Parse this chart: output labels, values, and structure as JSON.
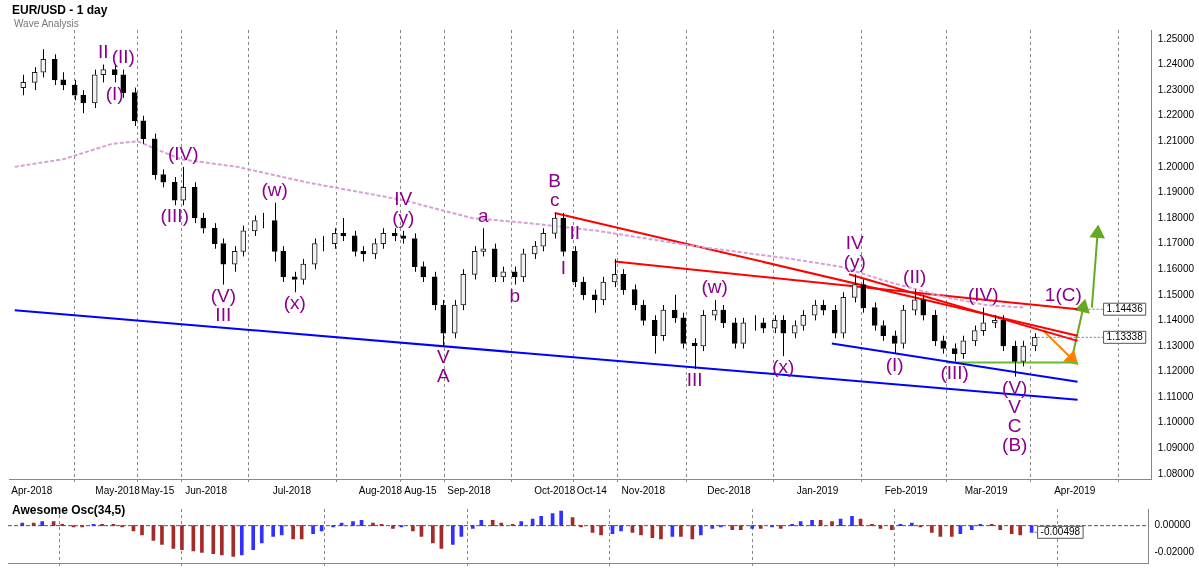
{
  "chart_data": [
    {
      "type": "candlestick",
      "title": "EUR/USD - 1 day",
      "subtitle": "Wave Analysis",
      "x": [
        "2018-03-29",
        "2018-04-02",
        "2018-04-05",
        "2018-04-09",
        "2018-04-12",
        "2018-04-16",
        "2018-04-19",
        "2018-04-23",
        "2018-04-26",
        "2018-04-30",
        "2018-05-03",
        "2018-05-07",
        "2018-05-10",
        "2018-05-14",
        "2018-05-17",
        "2018-05-21",
        "2018-05-24",
        "2018-05-28",
        "2018-05-31",
        "2018-06-04",
        "2018-06-07",
        "2018-06-11",
        "2018-06-14",
        "2018-06-18",
        "2018-06-21",
        "2018-06-25",
        "2018-06-28",
        "2018-07-02",
        "2018-07-05",
        "2018-07-09",
        "2018-07-12",
        "2018-07-16",
        "2018-07-19",
        "2018-07-23",
        "2018-07-26",
        "2018-07-30",
        "2018-08-02",
        "2018-08-06",
        "2018-08-09",
        "2018-08-13",
        "2018-08-16",
        "2018-08-20",
        "2018-08-23",
        "2018-08-27",
        "2018-08-30",
        "2018-09-03",
        "2018-09-06",
        "2018-09-10",
        "2018-09-13",
        "2018-09-17",
        "2018-09-20",
        "2018-09-24",
        "2018-09-27",
        "2018-10-01",
        "2018-10-04",
        "2018-10-08",
        "2018-10-11",
        "2018-10-15",
        "2018-10-18",
        "2018-10-22",
        "2018-10-25",
        "2018-10-29",
        "2018-11-01",
        "2018-11-05",
        "2018-11-08",
        "2018-11-12",
        "2018-11-15",
        "2018-11-19",
        "2018-11-22",
        "2018-11-26",
        "2018-11-29",
        "2018-12-03",
        "2018-12-06",
        "2018-12-10",
        "2018-12-13",
        "2018-12-17",
        "2018-12-20",
        "2018-12-24",
        "2018-12-27",
        "2018-12-31",
        "2019-01-03",
        "2019-01-07",
        "2019-01-10",
        "2019-01-14",
        "2019-01-17",
        "2019-01-21",
        "2019-01-24",
        "2019-01-28",
        "2019-01-31",
        "2019-02-04",
        "2019-02-07",
        "2019-02-11",
        "2019-02-14",
        "2019-02-18",
        "2019-02-21",
        "2019-02-25",
        "2019-02-28",
        "2019-03-04",
        "2019-03-07",
        "2019-03-11",
        "2019-03-14",
        "2019-03-18"
      ],
      "ohlc": [
        [
          1.231,
          1.236,
          1.228,
          1.233
        ],
        [
          1.233,
          1.239,
          1.23,
          1.237
        ],
        [
          1.237,
          1.246,
          1.235,
          1.242
        ],
        [
          1.242,
          1.244,
          1.232,
          1.234
        ],
        [
          1.234,
          1.237,
          1.23,
          1.232
        ],
        [
          1.232,
          1.234,
          1.226,
          1.228
        ],
        [
          1.228,
          1.23,
          1.221,
          1.225
        ],
        [
          1.225,
          1.238,
          1.223,
          1.236
        ],
        [
          1.236,
          1.24,
          1.233,
          1.238
        ],
        [
          1.238,
          1.24,
          1.233,
          1.236
        ],
        [
          1.236,
          1.238,
          1.227,
          1.229
        ],
        [
          1.229,
          1.231,
          1.216,
          1.218
        ],
        [
          1.218,
          1.22,
          1.209,
          1.211
        ],
        [
          1.211,
          1.213,
          1.195,
          1.197
        ],
        [
          1.197,
          1.199,
          1.192,
          1.194
        ],
        [
          1.194,
          1.196,
          1.185,
          1.187
        ],
        [
          1.187,
          1.2,
          1.185,
          1.192
        ],
        [
          1.192,
          1.194,
          1.178,
          1.18
        ],
        [
          1.18,
          1.182,
          1.174,
          1.176
        ],
        [
          1.176,
          1.178,
          1.168,
          1.17
        ],
        [
          1.17,
          1.172,
          1.154,
          1.162
        ],
        [
          1.162,
          1.169,
          1.159,
          1.167
        ],
        [
          1.167,
          1.177,
          1.165,
          1.175
        ],
        [
          1.175,
          1.181,
          1.173,
          1.179
        ],
        [
          1.179,
          1.182,
          1.176,
          1.179
        ],
        [
          1.179,
          1.186,
          1.163,
          1.167
        ],
        [
          1.167,
          1.169,
          1.155,
          1.157
        ],
        [
          1.157,
          1.159,
          1.151,
          1.156
        ],
        [
          1.156,
          1.164,
          1.154,
          1.162
        ],
        [
          1.162,
          1.172,
          1.16,
          1.17
        ],
        [
          1.17,
          1.173,
          1.167,
          1.17
        ],
        [
          1.17,
          1.176,
          1.168,
          1.174
        ],
        [
          1.174,
          1.18,
          1.171,
          1.173
        ],
        [
          1.173,
          1.175,
          1.165,
          1.167
        ],
        [
          1.167,
          1.169,
          1.163,
          1.166
        ],
        [
          1.166,
          1.172,
          1.164,
          1.17
        ],
        [
          1.17,
          1.176,
          1.168,
          1.174
        ],
        [
          1.174,
          1.176,
          1.171,
          1.173
        ],
        [
          1.173,
          1.175,
          1.17,
          1.172
        ],
        [
          1.172,
          1.174,
          1.159,
          1.161
        ],
        [
          1.161,
          1.163,
          1.155,
          1.157
        ],
        [
          1.157,
          1.159,
          1.144,
          1.146
        ],
        [
          1.146,
          1.148,
          1.13,
          1.135
        ],
        [
          1.135,
          1.148,
          1.133,
          1.146
        ],
        [
          1.146,
          1.16,
          1.144,
          1.158
        ],
        [
          1.158,
          1.169,
          1.156,
          1.167
        ],
        [
          1.167,
          1.176,
          1.165,
          1.168
        ],
        [
          1.168,
          1.17,
          1.155,
          1.157
        ],
        [
          1.157,
          1.161,
          1.155,
          1.159
        ],
        [
          1.159,
          1.161,
          1.154,
          1.157
        ],
        [
          1.157,
          1.168,
          1.155,
          1.166
        ],
        [
          1.166,
          1.171,
          1.164,
          1.169
        ],
        [
          1.169,
          1.176,
          1.167,
          1.174
        ],
        [
          1.174,
          1.182,
          1.172,
          1.18
        ],
        [
          1.18,
          1.182,
          1.165,
          1.167
        ],
        [
          1.167,
          1.169,
          1.153,
          1.155
        ],
        [
          1.155,
          1.157,
          1.148,
          1.15
        ],
        [
          1.15,
          1.152,
          1.143,
          1.148
        ],
        [
          1.148,
          1.157,
          1.146,
          1.155
        ],
        [
          1.155,
          1.164,
          1.153,
          1.158
        ],
        [
          1.158,
          1.16,
          1.15,
          1.152
        ],
        [
          1.152,
          1.154,
          1.144,
          1.146
        ],
        [
          1.146,
          1.148,
          1.138,
          1.14
        ],
        [
          1.14,
          1.142,
          1.127,
          1.134
        ],
        [
          1.134,
          1.146,
          1.132,
          1.144
        ],
        [
          1.144,
          1.15,
          1.139,
          1.141
        ],
        [
          1.141,
          1.143,
          1.129,
          1.131
        ],
        [
          1.131,
          1.133,
          1.121,
          1.13
        ],
        [
          1.13,
          1.144,
          1.128,
          1.142
        ],
        [
          1.142,
          1.148,
          1.14,
          1.144
        ],
        [
          1.144,
          1.146,
          1.137,
          1.139
        ],
        [
          1.139,
          1.141,
          1.129,
          1.131
        ],
        [
          1.131,
          1.141,
          1.129,
          1.139
        ],
        [
          1.139,
          1.142,
          1.136,
          1.139
        ],
        [
          1.139,
          1.141,
          1.135,
          1.137
        ],
        [
          1.137,
          1.142,
          1.135,
          1.14
        ],
        [
          1.14,
          1.142,
          1.126,
          1.135
        ],
        [
          1.135,
          1.14,
          1.133,
          1.138
        ],
        [
          1.138,
          1.144,
          1.136,
          1.142
        ],
        [
          1.142,
          1.148,
          1.14,
          1.146
        ],
        [
          1.146,
          1.148,
          1.142,
          1.144
        ],
        [
          1.144,
          1.146,
          1.133,
          1.135
        ],
        [
          1.135,
          1.151,
          1.133,
          1.149
        ],
        [
          1.149,
          1.158,
          1.147,
          1.154
        ],
        [
          1.154,
          1.156,
          1.143,
          1.145
        ],
        [
          1.145,
          1.147,
          1.136,
          1.138
        ],
        [
          1.138,
          1.14,
          1.132,
          1.134
        ],
        [
          1.134,
          1.136,
          1.127,
          1.131
        ],
        [
          1.131,
          1.146,
          1.129,
          1.144
        ],
        [
          1.144,
          1.152,
          1.142,
          1.148
        ],
        [
          1.148,
          1.15,
          1.14,
          1.142
        ],
        [
          1.142,
          1.144,
          1.13,
          1.132
        ],
        [
          1.132,
          1.134,
          1.127,
          1.129
        ],
        [
          1.129,
          1.131,
          1.124,
          1.127
        ],
        [
          1.127,
          1.134,
          1.125,
          1.132
        ],
        [
          1.132,
          1.138,
          1.13,
          1.136
        ],
        [
          1.136,
          1.145,
          1.134,
          1.139
        ],
        [
          1.139,
          1.142,
          1.137,
          1.14
        ],
        [
          1.14,
          1.142,
          1.128,
          1.13
        ],
        [
          1.13,
          1.132,
          1.118,
          1.124
        ],
        [
          1.124,
          1.132,
          1.122,
          1.13
        ],
        [
          1.13,
          1.135,
          1.128,
          1.13338
        ]
      ],
      "series": [
        {
          "type": "line",
          "x": [
            "2018-03-26",
            "2018-04-12",
            "2018-04-29",
            "2018-05-08",
            "2018-05-23",
            "2018-06-12",
            "2018-07-06",
            "2018-08-09",
            "2018-09-02",
            "2018-09-22",
            "2018-10-16",
            "2018-11-19",
            "2018-12-23",
            "2019-01-09",
            "2019-01-26",
            "2019-02-15",
            "2019-03-01",
            "2019-03-14"
          ],
          "values": [
            1.2,
            1.203,
            1.209,
            1.21,
            1.203,
            1.2,
            1.194,
            1.187,
            1.18,
            1.178,
            1.175,
            1.169,
            1.164,
            1.161,
            1.155,
            1.149,
            1.146,
            1.145
          ],
          "color": "#d8a0d8",
          "line_style": "dashed"
        },
        {
          "type": "line",
          "x": [
            "2018-10-01",
            "2019-04-02"
          ],
          "values": [
            1.182,
            1.134
          ],
          "color": "#ff0000",
          "line_style": "solid"
        },
        {
          "type": "line",
          "x": [
            "2018-10-22",
            "2019-03-28",
            "2019-04-02"
          ],
          "values": [
            1.163,
            1.1449,
            1.14436
          ],
          "color": "#ff0000",
          "line_style": "solid"
        },
        {
          "type": "line",
          "x": [
            "2019-01-12",
            "2019-04-02"
          ],
          "values": [
            1.158,
            1.132
          ],
          "color": "#ff0000",
          "line_style": "solid"
        },
        {
          "type": "line",
          "x": [
            "2018-03-26",
            "2019-04-02"
          ],
          "values": [
            1.144,
            1.109
          ],
          "color": "#0000ff",
          "line_style": "solid"
        },
        {
          "type": "line",
          "x": [
            "2019-01-06",
            "2019-04-02"
          ],
          "values": [
            1.131,
            1.116
          ],
          "color": "#0000ff",
          "line_style": "solid"
        },
        {
          "type": "line",
          "x": [
            "2019-02-15",
            "2019-04-02"
          ],
          "values": [
            1.1235,
            1.1235
          ],
          "color": "#66bb33",
          "line_style": "solid"
        },
        {
          "type": "line",
          "x": [
            "2019-03-21",
            "2019-03-31"
          ],
          "values": [
            1.136,
            1.125
          ],
          "color": "#ff8000",
          "line_style": "solid",
          "marker": "triangle"
        },
        {
          "type": "line",
          "x": [
            "2019-03-31",
            "2019-04-04"
          ],
          "values": [
            1.125,
            1.145
          ],
          "color": "#66aa22",
          "line_style": "solid",
          "marker": "triangle"
        },
        {
          "type": "line",
          "x": [
            "2019-04-07",
            "2019-04-09"
          ],
          "values": [
            1.145,
            1.174
          ],
          "color": "#66aa22",
          "line_style": "solid",
          "marker": "triangle"
        }
      ],
      "xlim": [
        "2018-03-24",
        "2019-04-28"
      ],
      "xticks": [
        {
          "value": "2018-04-01",
          "label": "Apr-2018"
        },
        {
          "value": "2018-05-01",
          "label": "May-2018"
        },
        {
          "value": "2018-05-15",
          "label": "May-15"
        },
        {
          "value": "2018-06-01",
          "label": "Jun-2018"
        },
        {
          "value": "2018-07-01",
          "label": "Jul-2018"
        },
        {
          "value": "2018-08-01",
          "label": "Aug-2018"
        },
        {
          "value": "2018-08-15",
          "label": "Aug-15"
        },
        {
          "value": "2018-09-01",
          "label": "Sep-2018"
        },
        {
          "value": "2018-10-01",
          "label": "Oct-2018"
        },
        {
          "value": "2018-10-14",
          "label": "Oct-14"
        },
        {
          "value": "2018-11-01",
          "label": "Nov-2018"
        },
        {
          "value": "2018-12-01",
          "label": "Dec-2018"
        },
        {
          "value": "2019-01-01",
          "label": "Jan-2019"
        },
        {
          "value": "2019-02-01",
          "label": "Feb-2019"
        },
        {
          "value": "2019-03-01",
          "label": "Mar-2019"
        },
        {
          "value": "2019-04-01",
          "label": "Apr-2019"
        }
      ],
      "ylim": [
        1.078,
        1.2535
      ],
      "yticks": [
        {
          "value": 1.08,
          "label": "1.08000"
        },
        {
          "value": 1.09,
          "label": "1.09000"
        },
        {
          "value": 1.1,
          "label": "1.10000"
        },
        {
          "value": 1.11,
          "label": "1.11000"
        },
        {
          "value": 1.12,
          "label": "1.12000"
        },
        {
          "value": 1.13,
          "label": "1.13000"
        },
        {
          "value": 1.14,
          "label": "1.14000"
        },
        {
          "value": 1.15,
          "label": "1.15000"
        },
        {
          "value": 1.16,
          "label": "1.16000"
        },
        {
          "value": 1.17,
          "label": "1.17000"
        },
        {
          "value": 1.18,
          "label": "1.18000"
        },
        {
          "value": 1.19,
          "label": "1.19000"
        },
        {
          "value": 1.2,
          "label": "1.20000"
        },
        {
          "value": 1.21,
          "label": "1.21000"
        },
        {
          "value": 1.22,
          "label": "1.22000"
        },
        {
          "value": 1.23,
          "label": "1.23000"
        },
        {
          "value": 1.24,
          "label": "1.24000"
        },
        {
          "value": 1.25,
          "label": "1.25000"
        }
      ],
      "grid": "x",
      "annotations": [
        {
          "text": "II",
          "x": "2018-04-26",
          "y": 1.24
        },
        {
          "text": "(II)",
          "x": "2018-05-03",
          "y": 1.238
        },
        {
          "text": "(I)",
          "x": "2018-04-30",
          "y": 1.233
        },
        {
          "text": "(IV)",
          "x": "2018-05-24",
          "y": 1.2
        },
        {
          "text": "(III)",
          "x": "2018-05-21",
          "y": 1.185
        },
        {
          "text": "(V)",
          "x": "2018-06-07",
          "y": 1.154
        },
        {
          "text": "III",
          "x": "2018-06-07",
          "y": 1.154
        },
        {
          "text": "(w)",
          "x": "2018-06-25",
          "y": 1.186
        },
        {
          "text": "(x)",
          "x": "2018-07-02",
          "y": 1.151
        },
        {
          "text": "(y)",
          "x": "2018-08-09",
          "y": 1.175
        },
        {
          "text": "IV",
          "x": "2018-08-09",
          "y": 1.175
        },
        {
          "text": "V",
          "x": "2018-08-23",
          "y": 1.13
        },
        {
          "text": "A",
          "x": "2018-08-23",
          "y": 1.13
        },
        {
          "text": "a",
          "x": "2018-09-06",
          "y": 1.176
        },
        {
          "text": "b",
          "x": "2018-09-17",
          "y": 1.154
        },
        {
          "text": "c",
          "x": "2018-10-01",
          "y": 1.182
        },
        {
          "text": "B",
          "x": "2018-10-01",
          "y": 1.182
        },
        {
          "text": "II",
          "x": "2018-10-08",
          "y": 1.169
        },
        {
          "text": "I",
          "x": "2018-10-04",
          "y": 1.165
        },
        {
          "text": "III",
          "x": "2018-11-19",
          "y": 1.121
        },
        {
          "text": "(w)",
          "x": "2018-11-26",
          "y": 1.148
        },
        {
          "text": "(x)",
          "x": "2018-12-20",
          "y": 1.126
        },
        {
          "text": "(y)",
          "x": "2019-01-14",
          "y": 1.158
        },
        {
          "text": "IV",
          "x": "2019-01-14",
          "y": 1.158
        },
        {
          "text": "(II)",
          "x": "2019-02-04",
          "y": 1.152
        },
        {
          "text": "(I)",
          "x": "2019-01-28",
          "y": 1.127
        },
        {
          "text": "(III)",
          "x": "2019-02-18",
          "y": 1.124
        },
        {
          "text": "(IV)",
          "x": "2019-02-28",
          "y": 1.145
        },
        {
          "text": "(V)",
          "x": "2019-03-11",
          "y": 1.118
        },
        {
          "text": "V",
          "x": "2019-03-11",
          "y": 1.118
        },
        {
          "text": "C",
          "x": "2019-03-11",
          "y": 1.118
        },
        {
          "text": "(B)",
          "x": "2019-03-11",
          "y": 1.118
        },
        {
          "text": "1(C)",
          "x": "2019-03-28",
          "y": 1.1449
        },
        {
          "text": "1.14436",
          "x": "2019-04-02",
          "y": 1.14436
        },
        {
          "text": "1.13338",
          "x": "2019-03-18",
          "y": 1.13338
        }
      ]
    },
    {
      "type": "bar",
      "title": "Awesome Osc(34,5)",
      "x": [
        "2018-03-29",
        "2018-04-02",
        "2018-04-05",
        "2018-04-09",
        "2018-04-12",
        "2018-04-16",
        "2018-04-19",
        "2018-04-23",
        "2018-04-26",
        "2018-04-30",
        "2018-05-03",
        "2018-05-07",
        "2018-05-10",
        "2018-05-14",
        "2018-05-17",
        "2018-05-21",
        "2018-05-24",
        "2018-05-28",
        "2018-05-31",
        "2018-06-04",
        "2018-06-07",
        "2018-06-11",
        "2018-06-14",
        "2018-06-18",
        "2018-06-21",
        "2018-06-25",
        "2018-06-28",
        "2018-07-02",
        "2018-07-05",
        "2018-07-09",
        "2018-07-12",
        "2018-07-16",
        "2018-07-19",
        "2018-07-23",
        "2018-07-26",
        "2018-07-30",
        "2018-08-02",
        "2018-08-06",
        "2018-08-09",
        "2018-08-13",
        "2018-08-16",
        "2018-08-20",
        "2018-08-23",
        "2018-08-27",
        "2018-08-30",
        "2018-09-03",
        "2018-09-06",
        "2018-09-10",
        "2018-09-13",
        "2018-09-17",
        "2018-09-20",
        "2018-09-24",
        "2018-09-27",
        "2018-10-01",
        "2018-10-04",
        "2018-10-08",
        "2018-10-11",
        "2018-10-15",
        "2018-10-18",
        "2018-10-22",
        "2018-10-25",
        "2018-10-29",
        "2018-11-01",
        "2018-11-05",
        "2018-11-08",
        "2018-11-12",
        "2018-11-15",
        "2018-11-19",
        "2018-11-22",
        "2018-11-26",
        "2018-11-29",
        "2018-12-03",
        "2018-12-06",
        "2018-12-10",
        "2018-12-13",
        "2018-12-17",
        "2018-12-20",
        "2018-12-24",
        "2018-12-27",
        "2018-12-31",
        "2019-01-03",
        "2019-01-07",
        "2019-01-10",
        "2019-01-14",
        "2019-01-17",
        "2019-01-21",
        "2019-01-24",
        "2019-01-28",
        "2019-01-31",
        "2019-02-04",
        "2019-02-07",
        "2019-02-11",
        "2019-02-14",
        "2019-02-18",
        "2019-02-21",
        "2019-02-25",
        "2019-02-28",
        "2019-03-04",
        "2019-03-07",
        "2019-03-11",
        "2019-03-14",
        "2019-03-18"
      ],
      "values": [
        0.002,
        0.002,
        0.003,
        0.003,
        0.001,
        -0.001,
        -0.001,
        0.001,
        0.001,
        0.001,
        -0.001,
        -0.004,
        -0.007,
        -0.011,
        -0.014,
        -0.017,
        -0.018,
        -0.019,
        -0.02,
        -0.021,
        -0.022,
        -0.023,
        -0.022,
        -0.018,
        -0.013,
        -0.008,
        -0.007,
        -0.01,
        -0.01,
        -0.006,
        -0.004,
        -0.001,
        0.002,
        0.003,
        0.004,
        0.002,
        0.001,
        -0.002,
        -0.001,
        -0.004,
        -0.008,
        -0.013,
        -0.017,
        -0.014,
        -0.008,
        -0.002,
        0.004,
        0.004,
        0.002,
        0.001,
        0.003,
        0.005,
        0.007,
        0.009,
        0.011,
        0.006,
        -0.001,
        -0.005,
        -0.007,
        -0.006,
        -0.004,
        -0.005,
        -0.007,
        -0.009,
        -0.01,
        -0.008,
        -0.008,
        -0.01,
        -0.007,
        -0.002,
        -0.001,
        -0.003,
        -0.003,
        -0.002,
        -0.002,
        -0.001,
        -0.002,
        0.001,
        0.003,
        0.004,
        0.004,
        0.003,
        0.005,
        0.007,
        0.005,
        0.001,
        -0.002,
        -0.003,
        0.001,
        0.002,
        -0.001,
        -0.005,
        -0.008,
        -0.008,
        -0.006,
        -0.003,
        0.001,
        0.001,
        -0.003,
        -0.006,
        -0.007,
        -0.00498
      ],
      "colors": [
        "#3030ff",
        "#a52a2a",
        "#3030ff",
        "#a52a2a",
        "#a52a2a",
        "#a52a2a",
        "#a52a2a",
        "#3030ff",
        "#a52a2a",
        "#a52a2a",
        "#a52a2a",
        "#a52a2a",
        "#a52a2a",
        "#a52a2a",
        "#a52a2a",
        "#a52a2a",
        "#a52a2a",
        "#a52a2a",
        "#a52a2a",
        "#a52a2a",
        "#a52a2a",
        "#a52a2a",
        "#3030ff",
        "#3030ff",
        "#3030ff",
        "#3030ff",
        "#3030ff",
        "#a52a2a",
        "#a52a2a",
        "#3030ff",
        "#3030ff",
        "#3030ff",
        "#3030ff",
        "#3030ff",
        "#3030ff",
        "#a52a2a",
        "#a52a2a",
        "#a52a2a",
        "#3030ff",
        "#a52a2a",
        "#a52a2a",
        "#a52a2a",
        "#a52a2a",
        "#3030ff",
        "#3030ff",
        "#3030ff",
        "#3030ff",
        "#a52a2a",
        "#a52a2a",
        "#a52a2a",
        "#3030ff",
        "#3030ff",
        "#3030ff",
        "#3030ff",
        "#3030ff",
        "#a52a2a",
        "#a52a2a",
        "#a52a2a",
        "#a52a2a",
        "#3030ff",
        "#3030ff",
        "#a52a2a",
        "#a52a2a",
        "#a52a2a",
        "#a52a2a",
        "#3030ff",
        "#a52a2a",
        "#a52a2a",
        "#3030ff",
        "#3030ff",
        "#3030ff",
        "#a52a2a",
        "#a52a2a",
        "#3030ff",
        "#a52a2a",
        "#3030ff",
        "#a52a2a",
        "#3030ff",
        "#3030ff",
        "#3030ff",
        "#a52a2a",
        "#a52a2a",
        "#3030ff",
        "#3030ff",
        "#a52a2a",
        "#a52a2a",
        "#a52a2a",
        "#a52a2a",
        "#3030ff",
        "#3030ff",
        "#a52a2a",
        "#a52a2a",
        "#a52a2a",
        "#a52a2a",
        "#3030ff",
        "#3030ff",
        "#3030ff",
        "#a52a2a",
        "#a52a2a",
        "#a52a2a",
        "#a52a2a",
        "#3030ff"
      ],
      "xlim": [
        "2018-03-24",
        "2019-04-28"
      ],
      "ylim": [
        -0.028,
        0.0125
      ],
      "yticks": [
        {
          "value": 0,
          "label": "0.00000"
        },
        {
          "value": -0.02,
          "label": "-0.02000"
        }
      ],
      "grid": "x",
      "tick_labels": "y",
      "ref_lines": [
        {
          "axis": "y",
          "value": 0,
          "line_style": "dashed"
        }
      ],
      "annotations": [
        {
          "text": "-0.00498",
          "x": "2019-03-18",
          "y": -0.00498
        }
      ]
    }
  ]
}
